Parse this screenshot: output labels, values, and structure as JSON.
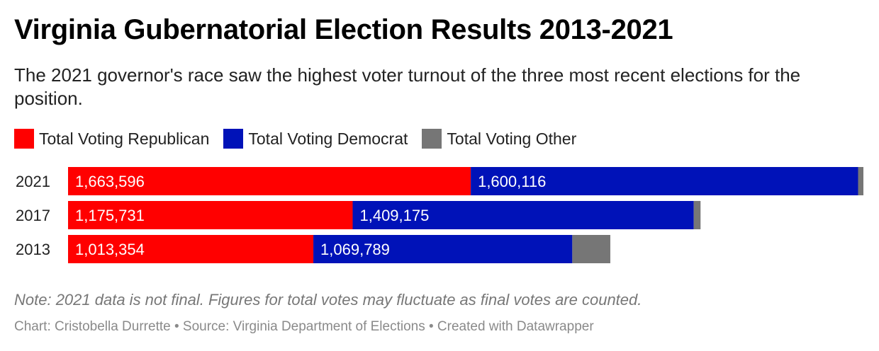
{
  "title": "Virginia Gubernatorial Election Results 2013-2021",
  "subtitle": "The 2021 governor's race saw the highest voter turnout of the three most recent elections for the position.",
  "note": "Note: 2021 data is not final. Figures for total votes may fluctuate as final votes are counted.",
  "credit": "Chart: Cristobella Durrette • Source: Virginia Department of Elections • Created with Datawrapper",
  "colors": {
    "republican": "#ff0000",
    "democrat": "#0012b8",
    "other": "#767676"
  },
  "chart_data": {
    "type": "bar",
    "orientation": "horizontal",
    "stacked": true,
    "categories": [
      "2021",
      "2017",
      "2013"
    ],
    "series": [
      {
        "name": "Total Voting Republican",
        "values": [
          1663596,
          1175731,
          1013354
        ],
        "labels": [
          "1,663,596",
          "1,175,731",
          "1,013,354"
        ]
      },
      {
        "name": "Total Voting Democrat",
        "values": [
          1600116,
          1409175,
          1069789
        ],
        "labels": [
          "1,600,116",
          "1,409,175",
          "1,069,789"
        ]
      },
      {
        "name": "Total Voting Other",
        "values": [
          22000,
          28000,
          157000
        ],
        "labels": [
          "",
          "",
          ""
        ]
      }
    ],
    "xlim": [
      0,
      3285712
    ],
    "grid": false,
    "legend": "top-left"
  }
}
